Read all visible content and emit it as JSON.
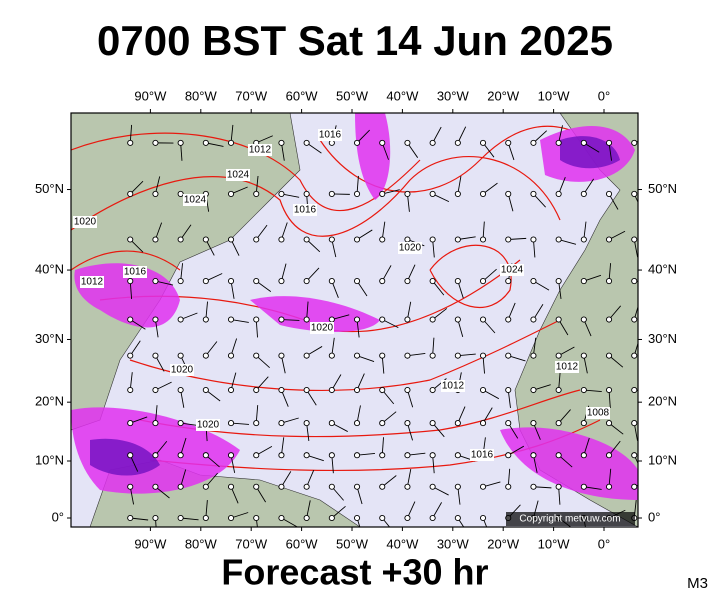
{
  "header": {
    "title": "0700 BST Sat 14 Jun 2025"
  },
  "map": {
    "lon_ticks": [
      {
        "value": -90,
        "label": "90°W"
      },
      {
        "value": -80,
        "label": "80°W"
      },
      {
        "value": -70,
        "label": "70°W"
      },
      {
        "value": -60,
        "label": "60°W"
      },
      {
        "value": -50,
        "label": "50°W"
      },
      {
        "value": -40,
        "label": "40°W"
      },
      {
        "value": -30,
        "label": "30°W"
      },
      {
        "value": -20,
        "label": "20°W"
      },
      {
        "value": -10,
        "label": "10°W"
      },
      {
        "value": 0,
        "label": "0°"
      }
    ],
    "lat_ticks": [
      {
        "value": 50,
        "label": "50°N"
      },
      {
        "value": 40,
        "label": "40°N"
      },
      {
        "value": 30,
        "label": "30°N"
      },
      {
        "value": 20,
        "label": "20°N"
      },
      {
        "value": 10,
        "label": "10°N"
      },
      {
        "value": 0,
        "label": "0°"
      }
    ],
    "isobar_labels": [
      "1012",
      "1024",
      "1024",
      "1020",
      "1016",
      "1012",
      "1016",
      "1020",
      "1024",
      "1020",
      "1020",
      "1012",
      "1012",
      "1008",
      "1016",
      "1020",
      "1016"
    ],
    "copyright": "Copyright metvuw.com"
  },
  "footer": {
    "forecast": "Forecast +30 hr",
    "model": "M3"
  }
}
